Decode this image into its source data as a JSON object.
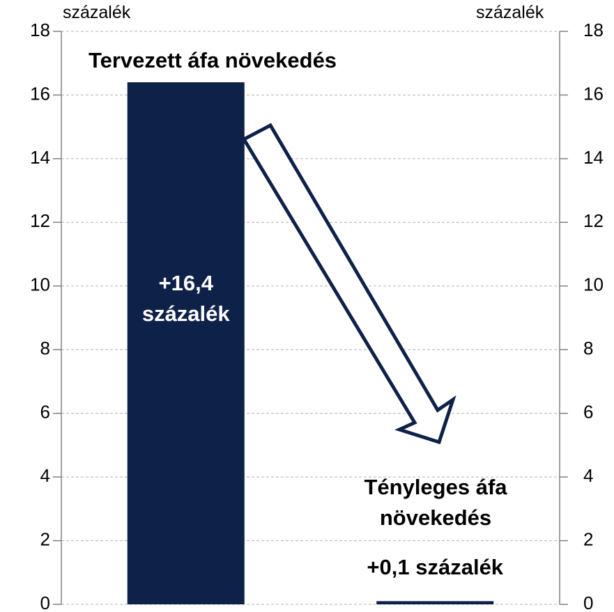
{
  "chart_data": {
    "type": "bar",
    "y_label": "százalék",
    "y2_label": "százalék",
    "categories": [
      null,
      null
    ],
    "values": [
      16.4,
      0.1
    ],
    "value_labels": [
      "+16,4 százalék",
      "+0,1 százalék"
    ],
    "color": "#0e2149",
    "annotations": [
      "Tervezett áfa növekedés",
      "Tényleges áfa növekedés"
    ],
    "ylim": [
      0,
      18
    ],
    "yticks": [
      0,
      2,
      4,
      6,
      8,
      10,
      12,
      14,
      16,
      18
    ],
    "y2lim": [
      0,
      18
    ],
    "y2ticks": [
      0,
      2,
      4,
      6,
      8,
      10,
      12,
      14,
      16,
      18
    ],
    "grid": true
  }
}
